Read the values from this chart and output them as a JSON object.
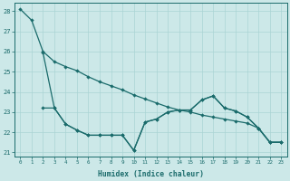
{
  "xlabel": "Humidex (Indice chaleur)",
  "bg_color": "#cce8e8",
  "grid_color": "#aad4d4",
  "line_color": "#1a6b6b",
  "xlim": [
    -0.5,
    23.5
  ],
  "ylim": [
    20.8,
    28.4
  ],
  "yticks": [
    21,
    22,
    23,
    24,
    25,
    26,
    27,
    28
  ],
  "xticks": [
    0,
    1,
    2,
    3,
    4,
    5,
    6,
    7,
    8,
    9,
    10,
    11,
    12,
    13,
    14,
    15,
    16,
    17,
    18,
    19,
    20,
    21,
    22,
    23
  ],
  "line1_x": [
    0,
    1,
    2,
    3,
    4,
    5,
    6,
    7,
    8,
    9,
    10,
    11,
    12,
    13,
    14,
    15,
    16,
    17,
    18,
    19,
    20,
    21,
    22,
    23
  ],
  "line1_y": [
    28.1,
    27.55,
    26.0,
    25.5,
    25.25,
    25.05,
    24.75,
    24.5,
    24.3,
    24.1,
    23.85,
    23.65,
    23.45,
    23.25,
    23.1,
    23.0,
    22.85,
    22.75,
    22.65,
    22.55,
    22.45,
    22.2,
    21.5,
    21.5
  ],
  "line2_x": [
    2,
    3,
    4,
    5,
    6,
    7,
    8,
    9,
    10,
    11,
    12,
    13,
    14,
    15,
    16,
    17,
    18,
    19,
    20,
    21,
    22,
    23
  ],
  "line2_y": [
    23.2,
    23.2,
    22.4,
    22.1,
    21.85,
    21.85,
    21.85,
    21.85,
    21.1,
    22.5,
    22.65,
    23.0,
    23.1,
    23.1,
    23.6,
    23.8,
    23.2,
    23.05,
    22.75,
    22.2,
    21.5,
    21.5
  ],
  "line3_x": [
    2,
    3,
    4,
    5,
    6,
    7,
    8,
    9,
    10,
    11,
    12,
    13,
    14,
    15,
    16,
    17,
    18,
    19,
    20,
    21,
    22,
    23
  ],
  "line3_y": [
    25.95,
    23.2,
    22.4,
    22.1,
    21.85,
    21.85,
    21.85,
    21.85,
    21.1,
    22.5,
    22.65,
    23.0,
    23.1,
    23.1,
    23.6,
    23.8,
    23.2,
    23.05,
    22.75,
    22.2,
    21.5,
    21.5
  ]
}
